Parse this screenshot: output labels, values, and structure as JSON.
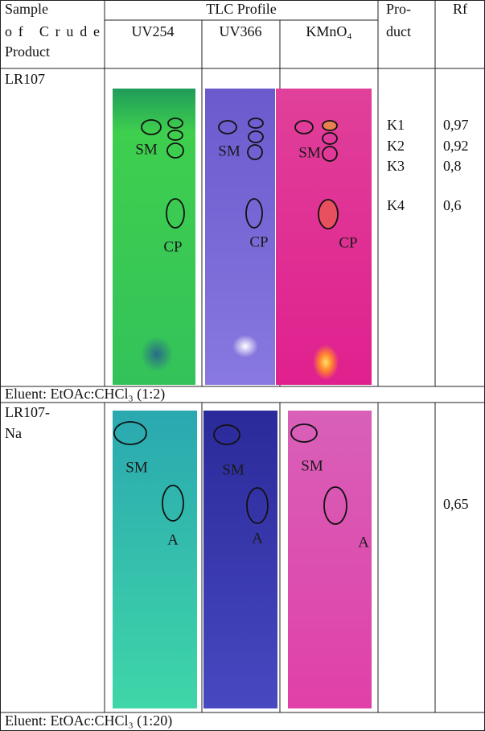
{
  "header": {
    "sample": [
      "Sample",
      "of Crude",
      "Product"
    ],
    "tlc": "TLC Profile",
    "uv254": "UV254",
    "uv366": "UV366",
    "kmno4": "KMnO₄",
    "product": [
      "Pro-",
      "duct"
    ],
    "rf": "Rf"
  },
  "rows": [
    {
      "sample": [
        "LR107"
      ],
      "uv254": [
        "SM",
        "CP"
      ],
      "uv366": [
        "SM",
        "CP"
      ],
      "kmno4": [
        "SM",
        "CP"
      ],
      "products": [
        "K1",
        "K2",
        "K3",
        "K4"
      ],
      "rf": [
        "0,97",
        "0,92",
        "0,8",
        "0,6"
      ],
      "eluent": "Eluent: EtOAc:CHCl₃ (1:2)"
    },
    {
      "sample": [
        "LR107-",
        "Na"
      ],
      "uv254": [
        "SM",
        "A"
      ],
      "uv366": [
        "SM",
        "A"
      ],
      "kmno4": [
        "SM",
        "A"
      ],
      "rf": [
        "0,65"
      ],
      "eluent": "Eluent: EtOAc:CHCl₃ (1:20)"
    }
  ]
}
